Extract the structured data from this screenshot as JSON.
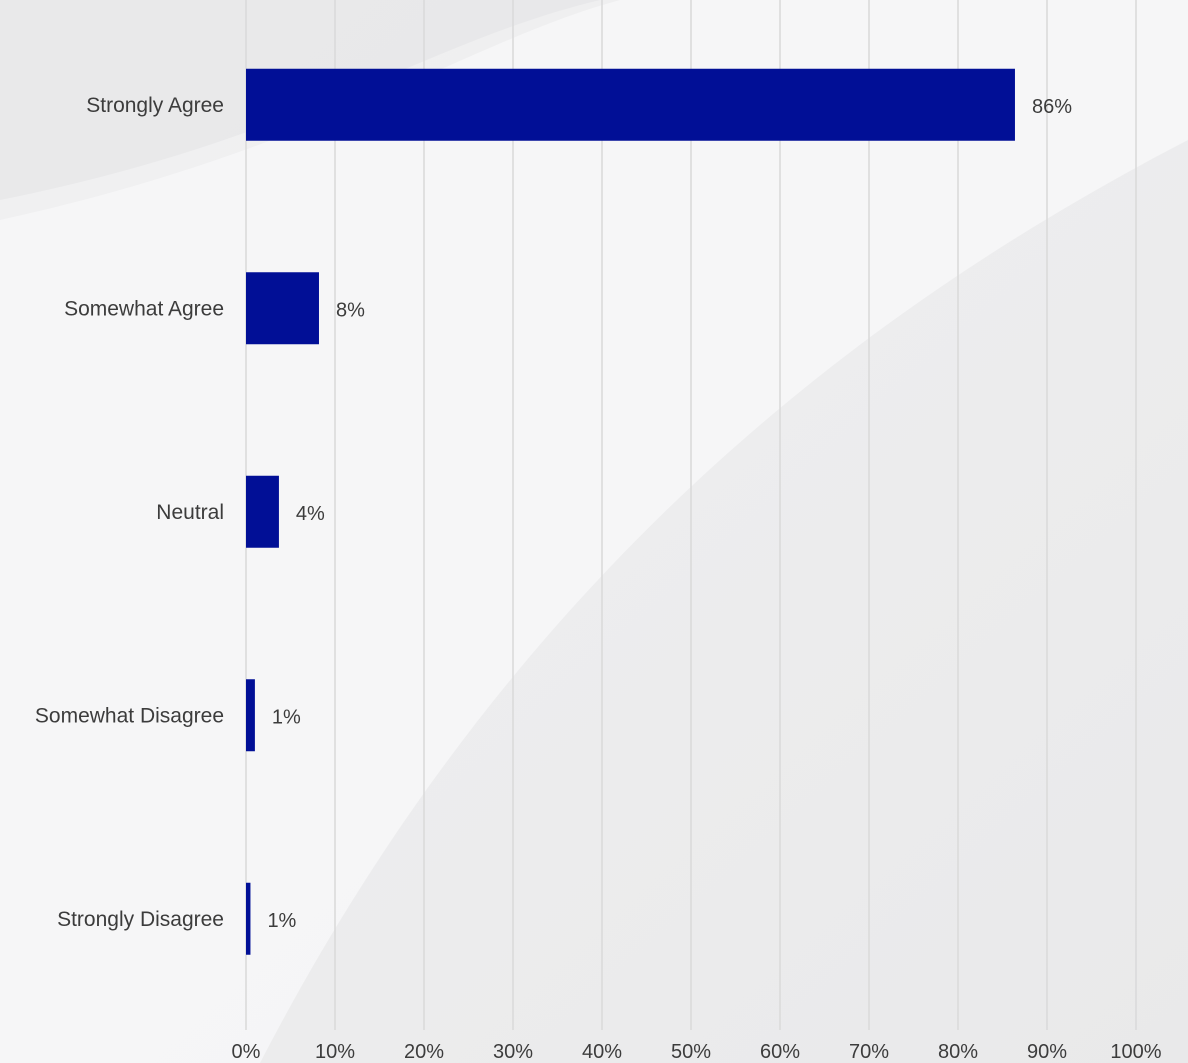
{
  "chart_data": {
    "type": "bar",
    "orientation": "horizontal",
    "categories": [
      "Strongly Agree",
      "Somewhat Agree",
      "Neutral",
      "Somewhat Disagree",
      "Strongly Disagree"
    ],
    "values": [
      86.4,
      8.2,
      3.7,
      1.0,
      0.5
    ],
    "value_labels": [
      "86%",
      "8%",
      "4%",
      "1%",
      "1%"
    ],
    "x_ticks": [
      "0%",
      "10%",
      "20%",
      "30%",
      "40%",
      "50%",
      "60%",
      "70%",
      "80%",
      "90%",
      "100%"
    ],
    "xlim": [
      0,
      100
    ],
    "grid": "vertical",
    "legend": "none",
    "title": "",
    "xlabel": "",
    "ylabel": "",
    "colors": {
      "bar": "#010f96",
      "grid": "#d9d9d9",
      "text": "#3c3c3c"
    }
  }
}
